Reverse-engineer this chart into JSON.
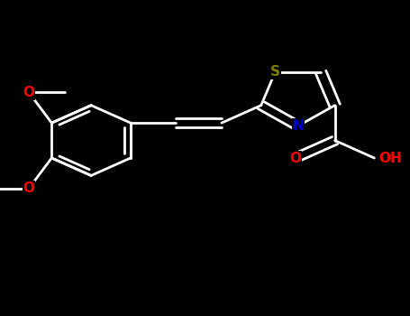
{
  "bg_color": "#000000",
  "wc": "#ffffff",
  "S_color": "#808000",
  "N_color": "#0000CD",
  "O_color": "#FF0000",
  "lw": 2.0,
  "lw_thick": 2.0,
  "fs": 11,
  "fig_w": 4.55,
  "fig_h": 3.5,
  "dpi": 100,
  "xlim": [
    0.0,
    9.0
  ],
  "ylim": [
    -4.5,
    4.5
  ]
}
